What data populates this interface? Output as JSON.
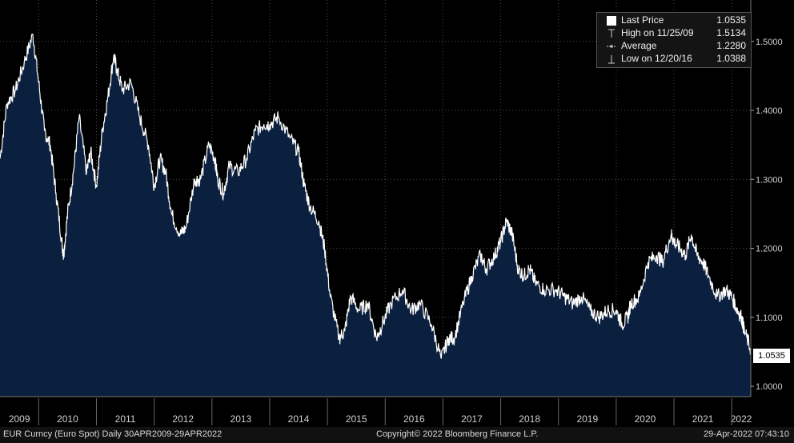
{
  "chart_data": {
    "type": "area",
    "title": "EUR Curncy (Euro Spot)",
    "frequency": "Daily",
    "range": "30APR2009-29APR2022",
    "x_ticks": [
      "2009",
      "2010",
      "2011",
      "2012",
      "2013",
      "2014",
      "2015",
      "2016",
      "2017",
      "2018",
      "2019",
      "2020",
      "2021",
      "2022"
    ],
    "y_ticks": [
      "1.0000",
      "1.1000",
      "1.2000",
      "1.3000",
      "1.4000",
      "1.5000"
    ],
    "ylim": [
      0.985,
      1.56
    ],
    "xlim": [
      2009.33,
      2022.33
    ],
    "grid": true,
    "y_axis_side": "right",
    "x": [
      2009.33,
      2009.45,
      2009.6,
      2009.75,
      2009.9,
      2010.0,
      2010.1,
      2010.2,
      2010.3,
      2010.4,
      2010.43,
      2010.5,
      2010.6,
      2010.7,
      2010.83,
      2010.9,
      2011.0,
      2011.1,
      2011.2,
      2011.3,
      2011.35,
      2011.45,
      2011.6,
      2011.75,
      2011.9,
      2012.0,
      2012.1,
      2012.2,
      2012.3,
      2012.45,
      2012.55,
      2012.7,
      2012.8,
      2012.95,
      2013.05,
      2013.1,
      2013.2,
      2013.3,
      2013.45,
      2013.6,
      2013.75,
      2013.9,
      2014.0,
      2014.15,
      2014.35,
      2014.5,
      2014.6,
      2014.7,
      2014.85,
      2014.95,
      2015.05,
      2015.2,
      2015.3,
      2015.4,
      2015.55,
      2015.7,
      2015.85,
      2015.95,
      2016.1,
      2016.3,
      2016.45,
      2016.6,
      2016.8,
      2016.97,
      2017.1,
      2017.2,
      2017.35,
      2017.5,
      2017.65,
      2017.75,
      2017.9,
      2018.0,
      2018.1,
      2018.2,
      2018.3,
      2018.4,
      2018.5,
      2018.6,
      2018.75,
      2018.95,
      2019.1,
      2019.25,
      2019.4,
      2019.55,
      2019.7,
      2019.85,
      2020.0,
      2020.1,
      2020.2,
      2020.25,
      2020.4,
      2020.55,
      2020.7,
      2020.8,
      2020.95,
      2021.0,
      2021.1,
      2021.2,
      2021.3,
      2021.4,
      2021.5,
      2021.6,
      2021.75,
      2021.9,
      2022.0,
      2022.1,
      2022.17,
      2022.22,
      2022.33
    ],
    "series": [
      {
        "name": "Last Price",
        "values": [
          1.33,
          1.41,
          1.43,
          1.47,
          1.51,
          1.44,
          1.37,
          1.35,
          1.28,
          1.21,
          1.19,
          1.25,
          1.31,
          1.39,
          1.31,
          1.34,
          1.29,
          1.37,
          1.42,
          1.48,
          1.46,
          1.43,
          1.44,
          1.39,
          1.35,
          1.29,
          1.33,
          1.31,
          1.25,
          1.22,
          1.23,
          1.3,
          1.3,
          1.35,
          1.33,
          1.3,
          1.28,
          1.32,
          1.31,
          1.33,
          1.37,
          1.38,
          1.38,
          1.39,
          1.36,
          1.34,
          1.29,
          1.26,
          1.24,
          1.2,
          1.13,
          1.07,
          1.08,
          1.13,
          1.11,
          1.12,
          1.07,
          1.09,
          1.12,
          1.14,
          1.11,
          1.12,
          1.09,
          1.04,
          1.07,
          1.07,
          1.12,
          1.16,
          1.19,
          1.17,
          1.19,
          1.21,
          1.24,
          1.22,
          1.17,
          1.16,
          1.17,
          1.15,
          1.14,
          1.14,
          1.13,
          1.12,
          1.13,
          1.11,
          1.1,
          1.11,
          1.11,
          1.09,
          1.1,
          1.12,
          1.13,
          1.18,
          1.19,
          1.18,
          1.22,
          1.21,
          1.2,
          1.19,
          1.22,
          1.19,
          1.18,
          1.16,
          1.13,
          1.14,
          1.13,
          1.11,
          1.1,
          1.08,
          1.0535
        ]
      }
    ],
    "legend": {
      "position": "top-right",
      "items": [
        {
          "icon": "square-icon",
          "label": "Last Price",
          "value": "1.0535"
        },
        {
          "icon": "high-marker-icon",
          "label": "High on 11/25/09",
          "value": "1.5134"
        },
        {
          "icon": "average-line-icon",
          "label": "Average",
          "value": "1.2280"
        },
        {
          "icon": "low-marker-icon",
          "label": "Low on 12/20/16",
          "value": "1.0388"
        }
      ]
    },
    "last_price_label": "1.0535"
  },
  "footer": {
    "left": "EUR Curncy (Euro Spot)  Daily 30APR2009-29APR2022",
    "center": "Copyright© 2022 Bloomberg Finance L.P.",
    "right": "29-Apr-2022 07:43:10"
  },
  "colors": {
    "background": "#000000",
    "fill": "#0b1f3f",
    "line": "#ffffff",
    "grid": "#4a4a4a",
    "axis": "#cfcfcf"
  }
}
